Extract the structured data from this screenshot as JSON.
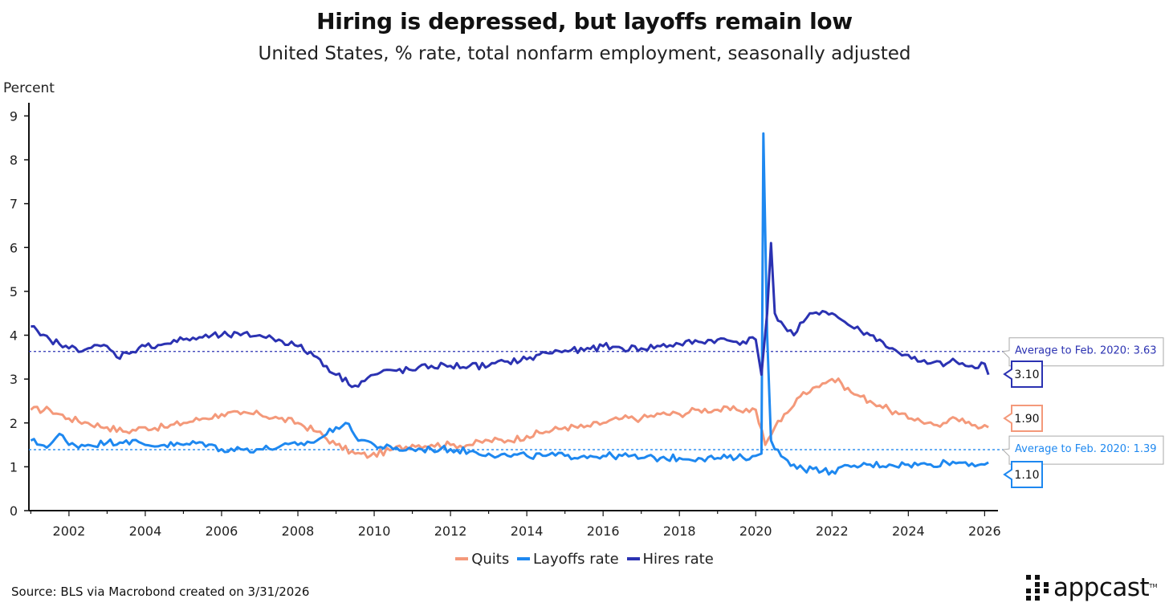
{
  "chart_data": {
    "type": "line",
    "title": "Hiring is depressed, but layoffs remain low",
    "subtitle": "United States, % rate, total nonfarm employment, seasonally adjusted",
    "ylabel": "Percent",
    "xlabel": "",
    "ylim": [
      0,
      9.3
    ],
    "xlim": [
      2000.95,
      2026.35
    ],
    "yticks": [
      "0",
      "1",
      "2",
      "3",
      "4",
      "5",
      "6",
      "7",
      "8",
      "9"
    ],
    "xticks": [
      "2002",
      "2004",
      "2006",
      "2008",
      "2010",
      "2012",
      "2014",
      "2016",
      "2018",
      "2020",
      "2022",
      "2024",
      "2026"
    ],
    "grid": false,
    "legend_position": "bottom-center",
    "colors": {
      "quits": "#F4997A",
      "layoffs": "#1E88F0",
      "hires": "#2B32B2"
    },
    "series": [
      {
        "name": "Quits",
        "points": [
          [
            2001.0,
            2.3
          ],
          [
            2001.5,
            2.3
          ],
          [
            2002.0,
            2.1
          ],
          [
            2002.5,
            2.0
          ],
          [
            2003.0,
            1.9
          ],
          [
            2003.5,
            1.8
          ],
          [
            2004.0,
            1.9
          ],
          [
            2004.5,
            1.9
          ],
          [
            2005.0,
            2.0
          ],
          [
            2005.5,
            2.1
          ],
          [
            2006.0,
            2.2
          ],
          [
            2006.5,
            2.2
          ],
          [
            2007.0,
            2.2
          ],
          [
            2007.5,
            2.1
          ],
          [
            2008.0,
            2.0
          ],
          [
            2008.5,
            1.8
          ],
          [
            2009.0,
            1.5
          ],
          [
            2009.5,
            1.3
          ],
          [
            2009.9,
            1.25
          ],
          [
            2010.5,
            1.4
          ],
          [
            2011.0,
            1.5
          ],
          [
            2011.5,
            1.5
          ],
          [
            2012.0,
            1.5
          ],
          [
            2012.5,
            1.5
          ],
          [
            2013.0,
            1.6
          ],
          [
            2013.5,
            1.6
          ],
          [
            2014.0,
            1.7
          ],
          [
            2014.5,
            1.8
          ],
          [
            2015.0,
            1.9
          ],
          [
            2015.5,
            1.9
          ],
          [
            2016.0,
            2.0
          ],
          [
            2016.5,
            2.1
          ],
          [
            2017.0,
            2.1
          ],
          [
            2017.5,
            2.2
          ],
          [
            2018.0,
            2.2
          ],
          [
            2018.5,
            2.3
          ],
          [
            2019.0,
            2.3
          ],
          [
            2019.5,
            2.3
          ],
          [
            2020.0,
            2.3
          ],
          [
            2020.25,
            1.5
          ],
          [
            2020.5,
            1.9
          ],
          [
            2020.75,
            2.2
          ],
          [
            2021.0,
            2.4
          ],
          [
            2021.25,
            2.7
          ],
          [
            2021.5,
            2.8
          ],
          [
            2021.75,
            2.9
          ],
          [
            2022.0,
            3.0
          ],
          [
            2022.25,
            2.9
          ],
          [
            2022.5,
            2.7
          ],
          [
            2022.75,
            2.6
          ],
          [
            2023.0,
            2.5
          ],
          [
            2023.25,
            2.4
          ],
          [
            2023.5,
            2.3
          ],
          [
            2023.75,
            2.2
          ],
          [
            2024.0,
            2.1
          ],
          [
            2024.25,
            2.1
          ],
          [
            2024.5,
            2.0
          ],
          [
            2024.75,
            1.95
          ],
          [
            2025.0,
            2.0
          ],
          [
            2025.25,
            2.1
          ],
          [
            2025.5,
            2.0
          ],
          [
            2025.75,
            1.95
          ],
          [
            2026.0,
            1.95
          ],
          [
            2026.1,
            1.9
          ]
        ]
      },
      {
        "name": "Layoffs rate",
        "points": [
          [
            2001.0,
            1.6
          ],
          [
            2001.25,
            1.5
          ],
          [
            2001.5,
            1.5
          ],
          [
            2001.75,
            1.75
          ],
          [
            2002.0,
            1.5
          ],
          [
            2002.5,
            1.5
          ],
          [
            2003.0,
            1.55
          ],
          [
            2003.5,
            1.6
          ],
          [
            2004.0,
            1.5
          ],
          [
            2004.5,
            1.5
          ],
          [
            2005.0,
            1.5
          ],
          [
            2005.5,
            1.55
          ],
          [
            2006.0,
            1.4
          ],
          [
            2006.5,
            1.4
          ],
          [
            2007.0,
            1.4
          ],
          [
            2007.5,
            1.45
          ],
          [
            2008.0,
            1.5
          ],
          [
            2008.5,
            1.6
          ],
          [
            2009.0,
            1.9
          ],
          [
            2009.25,
            2.0
          ],
          [
            2009.5,
            1.7
          ],
          [
            2010.0,
            1.5
          ],
          [
            2010.5,
            1.4
          ],
          [
            2011.0,
            1.4
          ],
          [
            2011.5,
            1.4
          ],
          [
            2012.0,
            1.4
          ],
          [
            2012.5,
            1.35
          ],
          [
            2013.0,
            1.3
          ],
          [
            2013.5,
            1.25
          ],
          [
            2014.0,
            1.25
          ],
          [
            2014.5,
            1.25
          ],
          [
            2015.0,
            1.25
          ],
          [
            2015.5,
            1.25
          ],
          [
            2016.0,
            1.25
          ],
          [
            2016.5,
            1.25
          ],
          [
            2017.0,
            1.2
          ],
          [
            2017.5,
            1.2
          ],
          [
            2018.0,
            1.2
          ],
          [
            2018.5,
            1.2
          ],
          [
            2019.0,
            1.2
          ],
          [
            2019.5,
            1.2
          ],
          [
            2020.0,
            1.25
          ],
          [
            2020.15,
            1.3
          ],
          [
            2020.2,
            8.6
          ],
          [
            2020.3,
            4.0
          ],
          [
            2020.4,
            1.6
          ],
          [
            2020.5,
            1.4
          ],
          [
            2020.75,
            1.2
          ],
          [
            2021.0,
            1.05
          ],
          [
            2021.25,
            0.95
          ],
          [
            2021.5,
            0.95
          ],
          [
            2021.75,
            0.9
          ],
          [
            2022.0,
            0.9
          ],
          [
            2022.5,
            1.0
          ],
          [
            2023.0,
            1.05
          ],
          [
            2023.5,
            1.05
          ],
          [
            2024.0,
            1.05
          ],
          [
            2024.5,
            1.05
          ],
          [
            2025.0,
            1.1
          ],
          [
            2025.5,
            1.1
          ],
          [
            2026.0,
            1.05
          ],
          [
            2026.1,
            1.1
          ]
        ]
      },
      {
        "name": "Hires rate",
        "points": [
          [
            2001.0,
            4.2
          ],
          [
            2001.25,
            4.0
          ],
          [
            2001.5,
            3.9
          ],
          [
            2001.75,
            3.8
          ],
          [
            2002.0,
            3.7
          ],
          [
            2002.5,
            3.7
          ],
          [
            2003.0,
            3.75
          ],
          [
            2003.25,
            3.5
          ],
          [
            2003.5,
            3.6
          ],
          [
            2004.0,
            3.75
          ],
          [
            2004.5,
            3.8
          ],
          [
            2005.0,
            3.9
          ],
          [
            2005.5,
            3.95
          ],
          [
            2006.0,
            4.0
          ],
          [
            2006.5,
            4.0
          ],
          [
            2007.0,
            4.0
          ],
          [
            2007.5,
            3.9
          ],
          [
            2008.0,
            3.75
          ],
          [
            2008.5,
            3.5
          ],
          [
            2009.0,
            3.1
          ],
          [
            2009.5,
            2.85
          ],
          [
            2010.0,
            3.1
          ],
          [
            2010.5,
            3.2
          ],
          [
            2011.0,
            3.2
          ],
          [
            2011.5,
            3.3
          ],
          [
            2012.0,
            3.3
          ],
          [
            2012.5,
            3.3
          ],
          [
            2013.0,
            3.3
          ],
          [
            2013.5,
            3.4
          ],
          [
            2014.0,
            3.45
          ],
          [
            2014.5,
            3.6
          ],
          [
            2015.0,
            3.65
          ],
          [
            2015.5,
            3.65
          ],
          [
            2016.0,
            3.75
          ],
          [
            2016.5,
            3.7
          ],
          [
            2017.0,
            3.7
          ],
          [
            2017.5,
            3.75
          ],
          [
            2018.0,
            3.8
          ],
          [
            2018.5,
            3.85
          ],
          [
            2019.0,
            3.9
          ],
          [
            2019.5,
            3.85
          ],
          [
            2020.0,
            3.9
          ],
          [
            2020.15,
            3.1
          ],
          [
            2020.3,
            4.5
          ],
          [
            2020.4,
            6.1
          ],
          [
            2020.5,
            4.5
          ],
          [
            2020.75,
            4.2
          ],
          [
            2021.0,
            4.0
          ],
          [
            2021.25,
            4.3
          ],
          [
            2021.5,
            4.5
          ],
          [
            2021.75,
            4.55
          ],
          [
            2022.0,
            4.5
          ],
          [
            2022.25,
            4.35
          ],
          [
            2022.5,
            4.2
          ],
          [
            2022.75,
            4.1
          ],
          [
            2023.0,
            4.0
          ],
          [
            2023.25,
            3.9
          ],
          [
            2023.5,
            3.7
          ],
          [
            2023.75,
            3.6
          ],
          [
            2024.0,
            3.55
          ],
          [
            2024.25,
            3.4
          ],
          [
            2024.5,
            3.35
          ],
          [
            2025.0,
            3.35
          ],
          [
            2025.25,
            3.4
          ],
          [
            2025.5,
            3.3
          ],
          [
            2025.75,
            3.25
          ],
          [
            2026.0,
            3.35
          ],
          [
            2026.1,
            3.1
          ]
        ]
      }
    ],
    "reference_lines": [
      {
        "series": "Hires rate",
        "value": 3.63,
        "label": "Average to Feb. 2020: 3.63"
      },
      {
        "series": "Layoffs rate",
        "value": 1.39,
        "label": "Average to Feb. 2020: 1.39"
      }
    ],
    "end_labels": [
      {
        "series": "Hires rate",
        "value": 3.1,
        "text": "3.10"
      },
      {
        "series": "Quits",
        "value": 1.9,
        "text": "1.90"
      },
      {
        "series": "Layoffs rate",
        "value": 1.1,
        "text": "1.10"
      }
    ]
  },
  "legend": {
    "items": [
      {
        "label": "Quits"
      },
      {
        "label": "Layoffs rate"
      },
      {
        "label": "Hires rate"
      }
    ]
  },
  "footer": {
    "source": "Source: BLS via Macrobond created on 3/31/2026",
    "logo_text": "appcast",
    "logo_tm": "TM"
  }
}
